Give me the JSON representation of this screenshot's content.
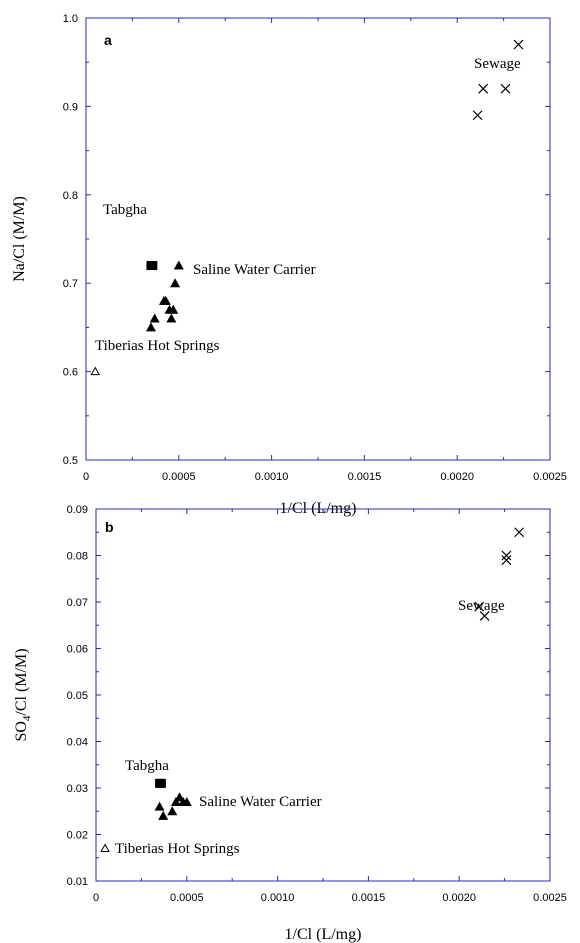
{
  "chart_data": [
    {
      "type": "scatter",
      "panel_label": "a",
      "xlabel": "1/Cl (L/mg)",
      "ylabel": "Na/Cl (M/M)",
      "xlim": [
        0,
        0.0025
      ],
      "ylim": [
        0.5,
        1.0
      ],
      "x_ticks": [
        0,
        0.0005,
        0.001,
        0.0015,
        0.002,
        0.0025
      ],
      "x_tick_labels": [
        "0",
        "0.0005",
        "0.0010",
        "0.0015",
        "0.0020",
        "0.0025"
      ],
      "y_ticks": [
        0.5,
        0.6,
        0.7,
        0.8,
        0.9,
        1.0
      ],
      "y_tick_labels": [
        "0.5",
        "0.6",
        "0.7",
        "0.8",
        "0.9",
        "1.0"
      ],
      "series": [
        {
          "name": "Tabgha",
          "marker": "filled-square",
          "points": [
            [
              0.00035,
              0.72
            ],
            [
              0.00036,
              0.72
            ]
          ]
        },
        {
          "name": "Saline Water Carrier",
          "marker": "filled-triangle",
          "points": [
            [
              0.00035,
              0.65
            ],
            [
              0.00037,
              0.66
            ],
            [
              0.00042,
              0.68
            ],
            [
              0.00043,
              0.68
            ],
            [
              0.00045,
              0.67
            ],
            [
              0.00046,
              0.66
            ],
            [
              0.00047,
              0.67
            ],
            [
              0.00048,
              0.7
            ],
            [
              0.0005,
              0.72
            ]
          ]
        },
        {
          "name": "Tiberias Hot Springs",
          "marker": "open-triangle",
          "points": [
            [
              5e-05,
              0.6
            ]
          ]
        },
        {
          "name": "Sewage",
          "marker": "x",
          "points": [
            [
              0.00211,
              0.89
            ],
            [
              0.00214,
              0.92
            ],
            [
              0.00226,
              0.92
            ],
            [
              0.00233,
              0.97
            ]
          ]
        }
      ]
    },
    {
      "type": "scatter",
      "panel_label": "b",
      "xlabel": "1/Cl (L/mg)",
      "ylabel_main": "SO",
      "ylabel_sub": "4",
      "ylabel_rest": "/Cl (M/M)",
      "xlim": [
        0,
        0.0025
      ],
      "ylim": [
        0.01,
        0.09
      ],
      "x_ticks": [
        0,
        0.0005,
        0.001,
        0.0015,
        0.002,
        0.0025
      ],
      "x_tick_labels": [
        "0",
        "0.0005",
        "0.0010",
        "0.0015",
        "0.0020",
        "0.0025"
      ],
      "y_ticks": [
        0.01,
        0.02,
        0.03,
        0.04,
        0.05,
        0.06,
        0.07,
        0.08,
        0.09
      ],
      "y_tick_labels": [
        "0.01",
        "0.02",
        "0.03",
        "0.04",
        "0.05",
        "0.06",
        "0.07",
        "0.08",
        "0.09"
      ],
      "series": [
        {
          "name": "Tabgha",
          "marker": "filled-square",
          "points": [
            [
              0.00035,
              0.031
            ],
            [
              0.00036,
              0.031
            ]
          ]
        },
        {
          "name": "Saline Water Carrier",
          "marker": "filled-triangle",
          "points": [
            [
              0.00035,
              0.026
            ],
            [
              0.00037,
              0.024
            ],
            [
              0.00042,
              0.025
            ],
            [
              0.00044,
              0.027
            ],
            [
              0.00046,
              0.028
            ],
            [
              0.00048,
              0.027
            ],
            [
              0.0005,
              0.027
            ]
          ]
        },
        {
          "name": "Tiberias Hot Springs",
          "marker": "open-triangle",
          "points": [
            [
              5e-05,
              0.017
            ]
          ]
        },
        {
          "name": "Sewage",
          "marker": "x",
          "points": [
            [
              0.00211,
              0.069
            ],
            [
              0.00214,
              0.067
            ],
            [
              0.00226,
              0.08
            ],
            [
              0.00226,
              0.079
            ],
            [
              0.00233,
              0.085
            ]
          ]
        }
      ]
    }
  ]
}
